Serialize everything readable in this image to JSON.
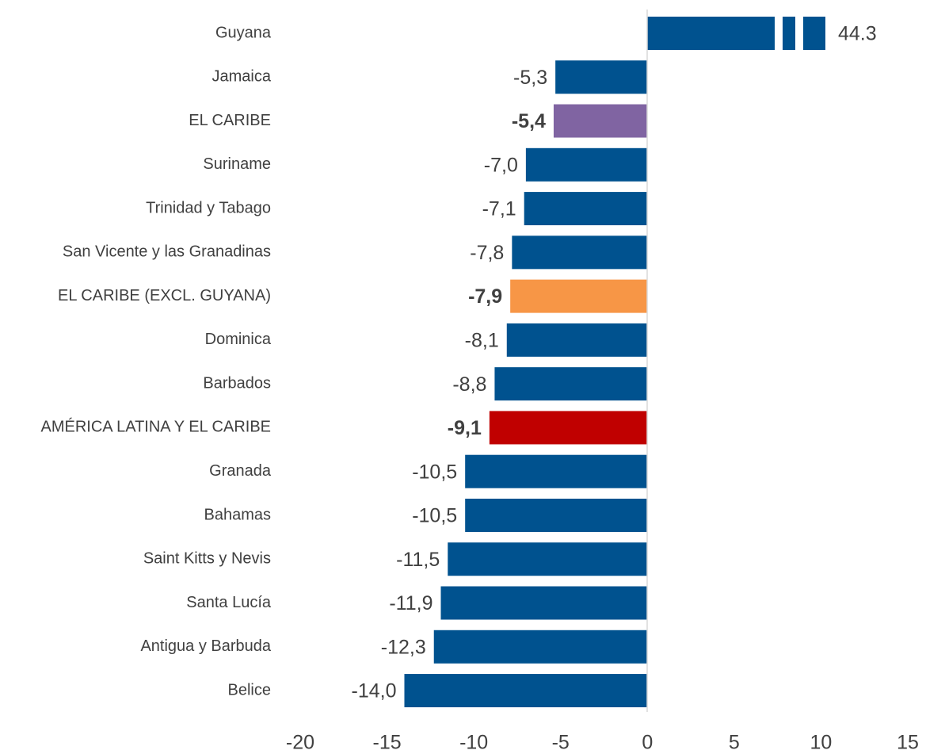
{
  "chart_data": {
    "type": "bar",
    "orientation": "horizontal",
    "categories": [
      "Guyana",
      "Jamaica",
      "EL CARIBE",
      "Suriname",
      "Trinidad y Tabago",
      "San Vicente y las Granadinas",
      "EL CARIBE (EXCL. GUYANA)",
      "Dominica",
      "Barbados",
      "AMÉRICA LATINA Y EL CARIBE",
      "Granada",
      "Bahamas",
      "Saint Kitts y Nevis",
      "Santa Lucía",
      "Antigua y Barbuda",
      "Belice"
    ],
    "values": [
      44.3,
      -5.3,
      -5.4,
      -7.0,
      -7.1,
      -7.8,
      -7.9,
      -8.1,
      -8.8,
      -9.1,
      -10.5,
      -10.5,
      -11.5,
      -11.9,
      -12.3,
      -14.0
    ],
    "value_labels": [
      "44.3",
      "-5,3",
      "-5,4",
      "-7,0",
      "-7,1",
      "-7,8",
      "-7,9",
      "-8,1",
      "-8,8",
      "-9,1",
      "-10,5",
      "-10,5",
      "-11,5",
      "-11,9",
      "-12,3",
      "-14,0"
    ],
    "color": "#00528f",
    "colors": [
      "#00528f",
      "#00528f",
      "#8064a2",
      "#00528f",
      "#00528f",
      "#00528f",
      "#f79646",
      "#00528f",
      "#00528f",
      "#c00000",
      "#00528f",
      "#00528f",
      "#00528f",
      "#00528f",
      "#00528f",
      "#00528f"
    ],
    "xlim": [
      -20,
      15
    ],
    "xticks": [
      -20,
      -15,
      -10,
      -5,
      0,
      5,
      10,
      15
    ],
    "grid": false
  }
}
